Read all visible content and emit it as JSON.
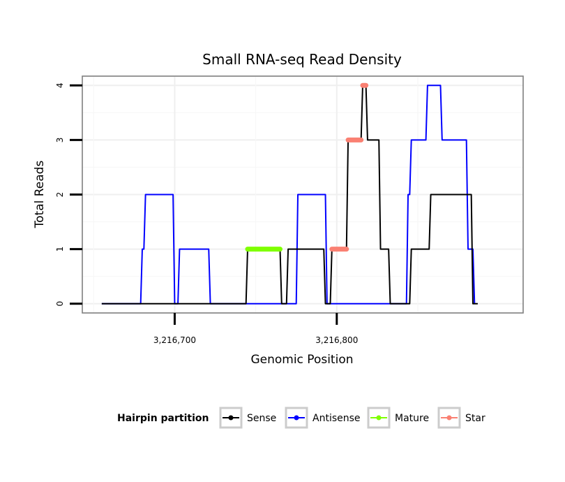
{
  "chart_data": {
    "type": "line",
    "title": "Small RNA-seq Read Density",
    "xlabel": "Genomic Position",
    "ylabel": "Total Reads",
    "xlim": [
      3216643,
      3216915
    ],
    "ylim": [
      -0.17,
      4.17
    ],
    "x_ticks": [
      3216700,
      3216800
    ],
    "x_tick_labels": [
      "3,216,700",
      "3,216,800"
    ],
    "y_ticks": [
      0,
      1,
      2,
      3,
      4
    ],
    "y_tick_labels": [
      "0",
      "1",
      "2",
      "3",
      "4"
    ],
    "legend": {
      "title": "Hairpin partition",
      "position": "bottom",
      "entries": [
        "Sense",
        "Antisense",
        "Mature",
        "Star"
      ]
    },
    "series": [
      {
        "name": "Sense",
        "color": "#000000",
        "x": [
          3216655,
          3216744,
          3216745,
          3216765,
          3216766,
          3216769,
          3216770,
          3216792,
          3216793,
          3216796,
          3216797,
          3216806,
          3216807,
          3216815,
          3216816,
          3216818,
          3216819,
          3216826,
          3216827,
          3216832,
          3216833,
          3216838,
          3216839,
          3216845,
          3216846,
          3216857,
          3216858,
          3216861,
          3216862,
          3216866,
          3216867,
          3216883,
          3216884,
          3216887
        ],
        "values": [
          0,
          0,
          1,
          1,
          0,
          0,
          1,
          1,
          0,
          0,
          1,
          1,
          3,
          3,
          4,
          4,
          3,
          3,
          1,
          1,
          0,
          0,
          0,
          0,
          1,
          1,
          2,
          2,
          2,
          2,
          2,
          2,
          0,
          0
        ]
      },
      {
        "name": "Antisense",
        "color": "#0000ff",
        "x": [
          3216655,
          3216679,
          3216680,
          3216681,
          3216682,
          3216699,
          3216700,
          3216702,
          3216703,
          3216721,
          3216722,
          3216775,
          3216776,
          3216793,
          3216794,
          3216843,
          3216844,
          3216845,
          3216846,
          3216851,
          3216852,
          3216855,
          3216856,
          3216864,
          3216865,
          3216880,
          3216881,
          3216884,
          3216885
        ],
        "values": [
          0,
          0,
          1,
          1,
          2,
          2,
          0,
          0,
          1,
          1,
          0,
          0,
          2,
          2,
          0,
          0,
          2,
          2,
          3,
          3,
          3,
          3,
          4,
          4,
          3,
          3,
          1,
          1,
          0
        ]
      },
      {
        "name": "Mature",
        "color": "#7fff00",
        "x": [
          3216745,
          3216765
        ],
        "values": [
          1,
          1
        ]
      },
      {
        "name": "Star",
        "color": "#fa8072",
        "segments": [
          {
            "x": [
              3216797,
              3216806
            ],
            "values": [
              1,
              1
            ]
          },
          {
            "x": [
              3216807,
              3216815
            ],
            "values": [
              3,
              3
            ]
          },
          {
            "x": [
              3216816,
              3216818
            ],
            "values": [
              4,
              4
            ]
          }
        ]
      }
    ]
  }
}
